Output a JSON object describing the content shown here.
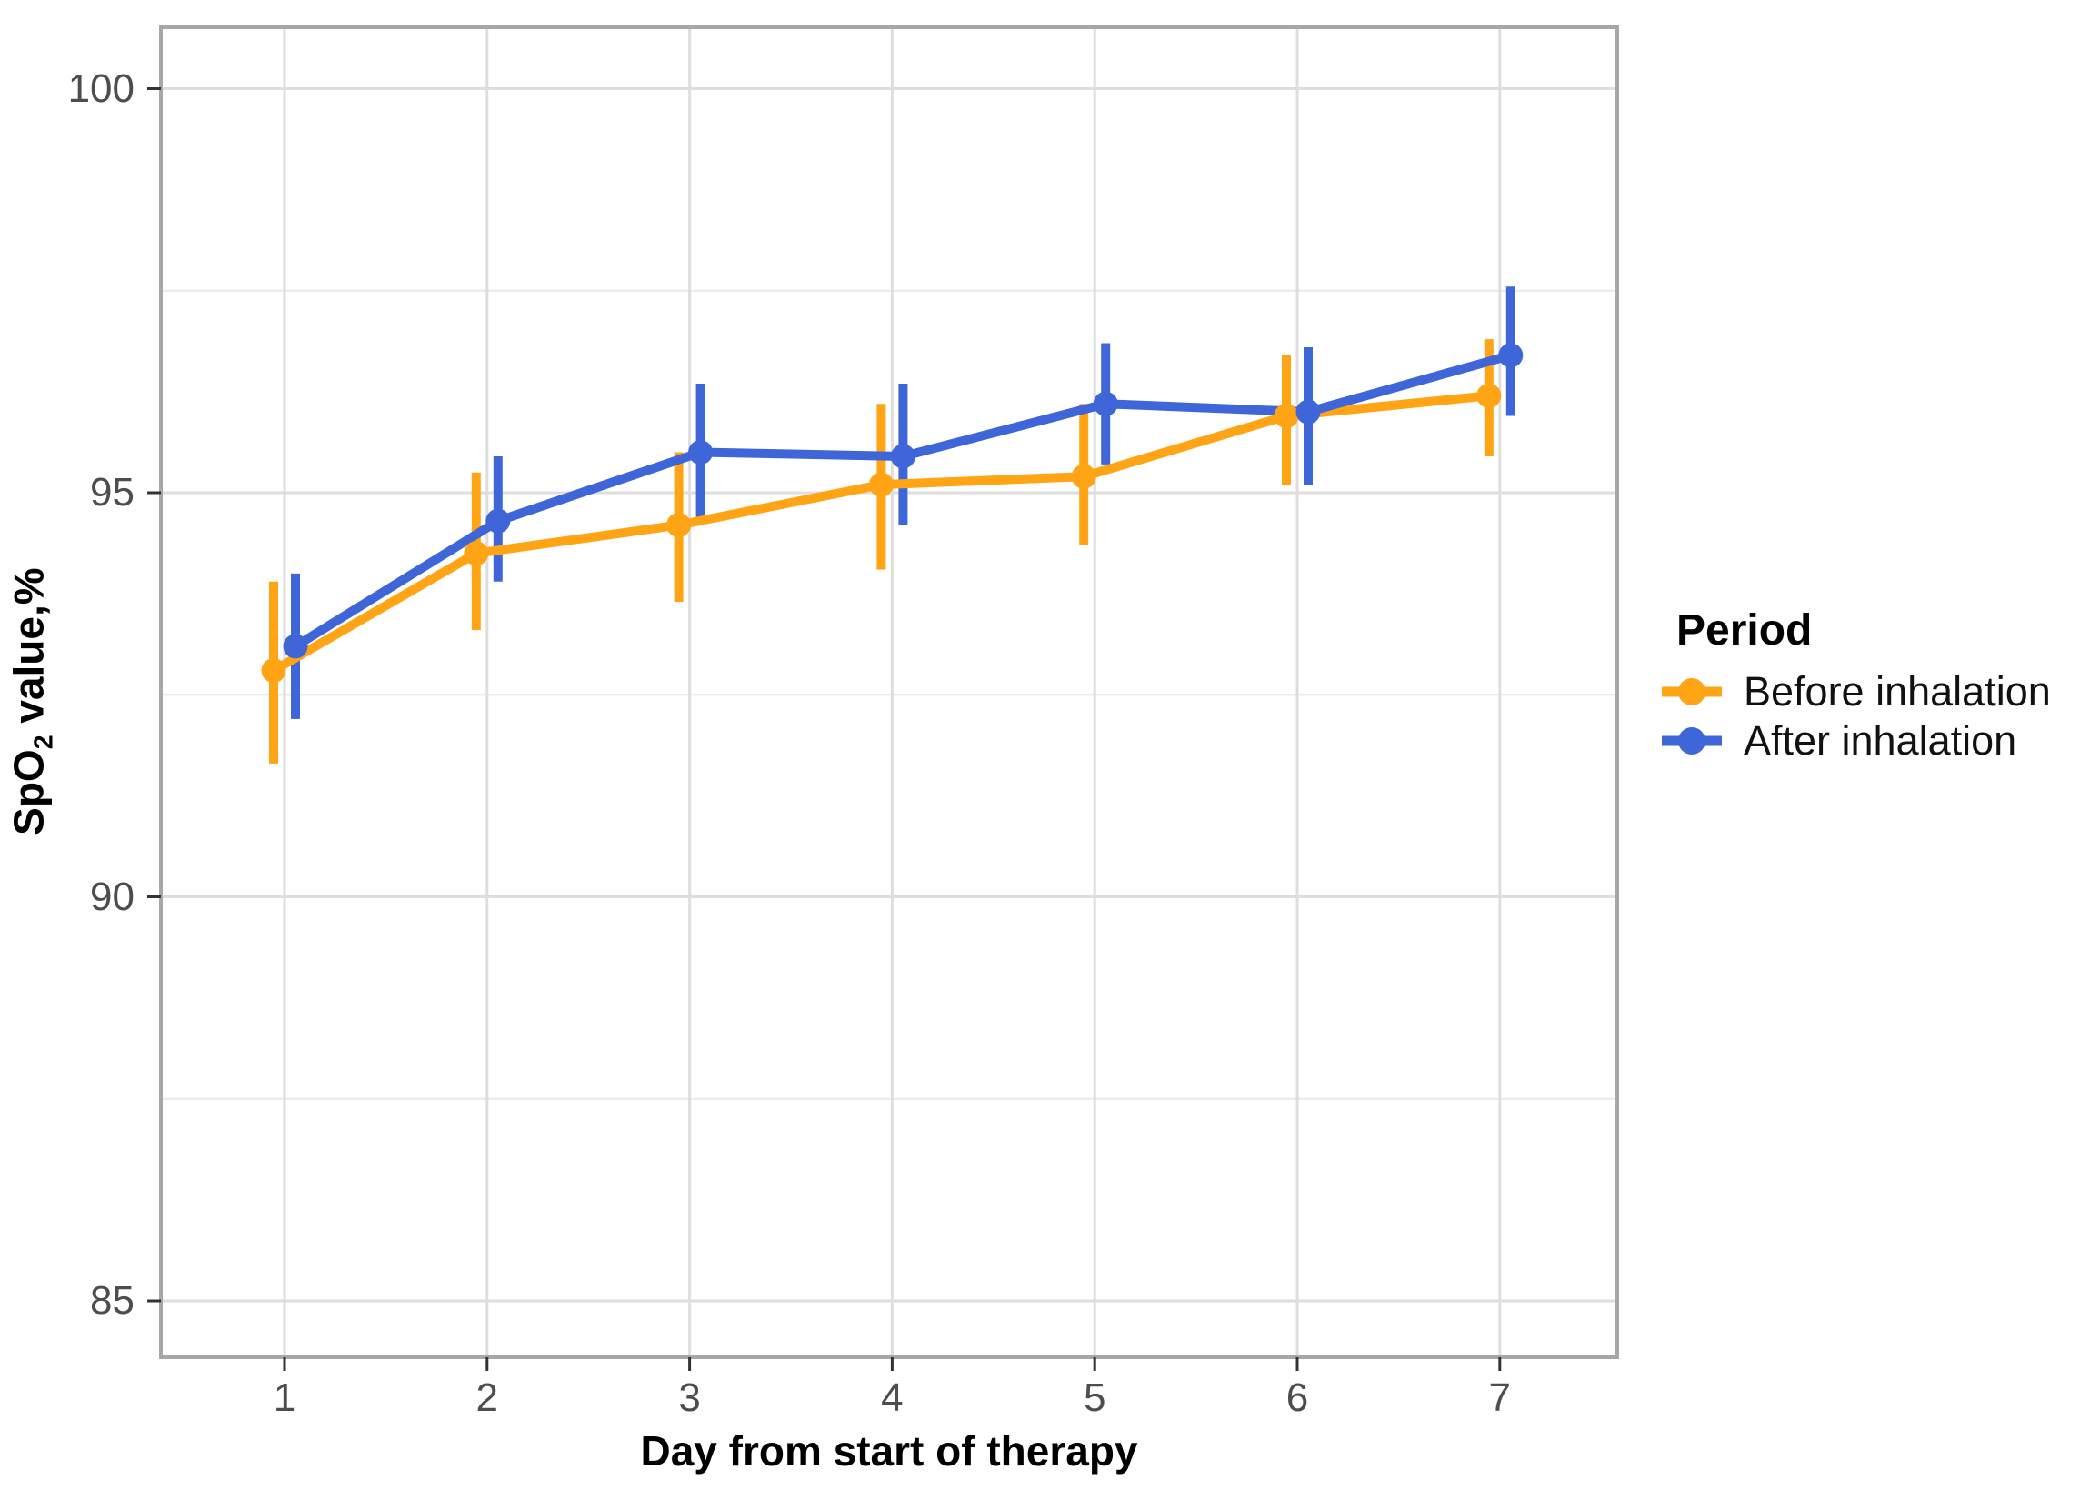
{
  "figure": {
    "background": "#ffffff",
    "panel_border_color": "#a7a7a7",
    "major_grid_color": "#dedede",
    "minor_grid_color": "#ececec",
    "tick_mark_color": "#333333",
    "tick_label_color": "#4d4d4d"
  },
  "axes": {
    "x_title": "Day from start of therapy",
    "y_title_prefix": "SpO",
    "y_title_sub": "2",
    "y_title_suffix": " value,%"
  },
  "legend": {
    "title": "Period",
    "position": "right"
  },
  "chart_data": {
    "type": "line",
    "title": "",
    "xlabel": "Day from start of therapy",
    "ylabel": "SpO2 value,%",
    "x": [
      1,
      2,
      3,
      4,
      5,
      6,
      7
    ],
    "xticks": [
      1,
      2,
      3,
      4,
      5,
      6,
      7
    ],
    "yticks": [
      85,
      90,
      95,
      100
    ],
    "yticks_minor": [
      87.5,
      92.5,
      97.5
    ],
    "ylim": [
      84.3,
      100.75
    ],
    "xlim": [
      0.4,
      7.6
    ],
    "grid": true,
    "error_bars": true,
    "legend_position": "right",
    "series": [
      {
        "name": "Before inhalation",
        "color": "#FFA414",
        "values": [
          92.8,
          94.25,
          94.6,
          95.1,
          95.2,
          95.95,
          96.2
        ],
        "ci_low": [
          91.65,
          93.3,
          93.65,
          94.05,
          94.35,
          95.1,
          95.45
        ],
        "ci_high": [
          93.9,
          95.25,
          95.5,
          96.1,
          96.1,
          96.7,
          96.9
        ]
      },
      {
        "name": "After inhalation",
        "color": "#3E66D9",
        "values": [
          93.1,
          94.65,
          95.5,
          95.45,
          96.1,
          96.0,
          96.7
        ],
        "ci_low": [
          92.2,
          93.9,
          94.65,
          94.6,
          95.35,
          95.1,
          95.95
        ],
        "ci_high": [
          94.0,
          95.45,
          96.35,
          96.35,
          96.85,
          96.8,
          97.55
        ]
      }
    ]
  }
}
